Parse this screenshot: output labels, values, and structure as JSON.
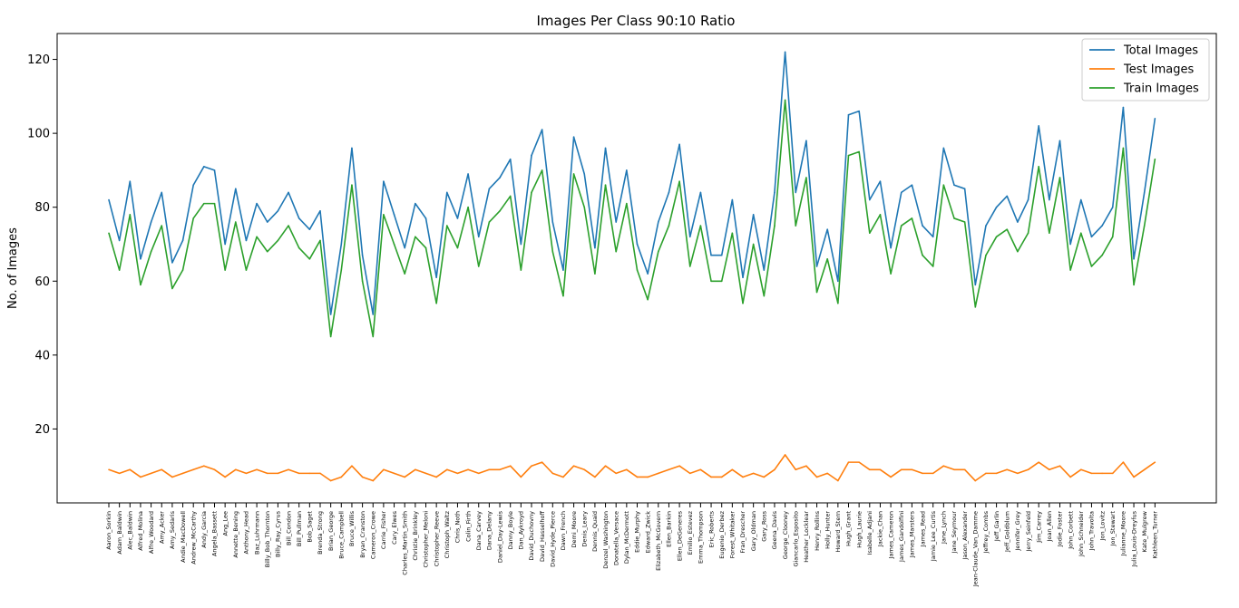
{
  "chart_data": {
    "type": "line",
    "title": "Images Per Class 90:10 Ratio",
    "xlabel": "",
    "ylabel": "No. of Images",
    "ylim": [
      0,
      127
    ],
    "yticks": [
      20,
      40,
      60,
      80,
      100,
      120
    ],
    "grid": false,
    "legend_position": "top-right",
    "categories": [
      "Aaron_Sorkin",
      "Adam_Baldwin",
      "Alec_Baldwin",
      "Alfred_Molina",
      "Alfre_Woodard",
      "Amy_Acker",
      "Amy_Sedaris",
      "Andie_MacDowell",
      "Andrew_McCarthy",
      "Andy_Garcia",
      "Angela_Bassett",
      "Ang_Lee",
      "Annette_Bening",
      "Anthony_Head",
      "Baz_Luhrmann",
      "Billy_Bob_Thornton",
      "Billy_Ray_Cyrus",
      "Bill_Condon",
      "Bill_Pullman",
      "Bob_Saget",
      "Brenda_Strong",
      "Brian_George",
      "Bruce_Campbell",
      "Bruce_Willis",
      "Bryan_Cranston",
      "Cameron_Crowe",
      "Carrie_Fisher",
      "Cary_Elwes",
      "Charles_Martin_Smith",
      "Christie_Brinkley",
      "Christopher_Meloni",
      "Christopher_Reeve",
      "Christoph_Waltz",
      "Chris_Noth",
      "Colin_Firth",
      "Dana_Carvey",
      "Dana_Delany",
      "Daniel_Day-Lewis",
      "Danny_Boyle",
      "Dan_Aykroyd",
      "David_Duchovny",
      "David_Hasselhoff",
      "David_Hyde_Pierce",
      "Dawn_French",
      "Demi_Moore",
      "Denis_Leary",
      "Dennis_Quaid",
      "Denzel_Washington",
      "Donatella_Versace",
      "Dylan_McDermott",
      "Eddie_Murphy",
      "Edward_Zwick",
      "Elizabeth_McGovern",
      "Ellen_Barkin",
      "Ellen_DeGeneres",
      "Emilio_Estevez",
      "Emma_Thompson",
      "Eric_Roberts",
      "Eugenio_Derbez",
      "Forest_Whitaker",
      "Fran_Drescher",
      "Gary_Oldman",
      "Gary_Ross",
      "Geena_Davis",
      "George_Clooney",
      "Giancarlo_Esposito",
      "Heather_Locklear",
      "Henry_Rollins",
      "Holly_Hunter",
      "Howard_Stern",
      "Hugh_Grant",
      "Hugh_Laurie",
      "Isabelle_Adjani",
      "Jackie_Chan",
      "James_Cameron",
      "James_Gandolfini",
      "James_Marsters",
      "James_Read",
      "Jamie_Lee_Curtis",
      "Jane_Lynch",
      "Jane_Seymour",
      "Jason_Alexander",
      "Jean-Claude_Van_Damme",
      "Jeffrey_Combs",
      "Jeff_Garlin",
      "Jeff_Goldblum",
      "Jennifer_Grey",
      "Jerry_Seinfeld",
      "Jim_Carrey",
      "Joan_Allen",
      "Jodie_Foster",
      "John_Corbett",
      "John_Schneider",
      "John_Travolta",
      "Jon_Lovitz",
      "Jon_Stewart",
      "Julianne_Moore",
      "Julia_Louis-Dreyfus",
      "Kate_Mulgrew",
      "Kathleen_Turner"
    ],
    "series": [
      {
        "name": "Total Images",
        "color": "#1f77b4",
        "values": [
          82,
          71,
          87,
          66,
          76,
          84,
          65,
          71,
          86,
          91,
          90,
          70,
          85,
          71,
          81,
          76,
          79,
          84,
          77,
          74,
          79,
          51,
          70,
          96,
          67,
          51,
          87,
          78,
          69,
          81,
          77,
          61,
          84,
          77,
          89,
          72,
          85,
          88,
          93,
          70,
          94,
          101,
          76,
          63,
          99,
          89,
          69,
          96,
          76,
          90,
          70,
          62,
          76,
          84,
          97,
          72,
          84,
          67,
          67,
          82,
          61,
          78,
          63,
          84,
          122,
          84,
          98,
          64,
          74,
          60,
          105,
          106,
          82,
          87,
          69,
          84,
          86,
          75,
          72,
          96,
          86,
          85,
          59,
          75,
          80,
          83,
          76,
          82,
          102,
          82,
          98,
          70,
          82,
          72,
          75,
          80,
          107,
          66,
          84,
          104
        ]
      },
      {
        "name": "Test Images",
        "color": "#ff7f0e",
        "values": [
          9,
          8,
          9,
          7,
          8,
          9,
          7,
          8,
          9,
          10,
          9,
          7,
          9,
          8,
          9,
          8,
          8,
          9,
          8,
          8,
          8,
          6,
          7,
          10,
          7,
          6,
          9,
          8,
          7,
          9,
          8,
          7,
          9,
          8,
          9,
          8,
          9,
          9,
          10,
          7,
          10,
          11,
          8,
          7,
          10,
          9,
          7,
          10,
          8,
          9,
          7,
          7,
          8,
          9,
          10,
          8,
          9,
          7,
          7,
          9,
          7,
          8,
          7,
          9,
          13,
          9,
          10,
          7,
          8,
          6,
          11,
          11,
          9,
          9,
          7,
          9,
          9,
          8,
          8,
          10,
          9,
          9,
          6,
          8,
          8,
          9,
          8,
          9,
          11,
          9,
          10,
          7,
          9,
          8,
          8,
          8,
          11,
          7,
          9,
          11
        ]
      },
      {
        "name": "Train Images",
        "color": "#2ca02c",
        "values": [
          73,
          63,
          78,
          59,
          68,
          75,
          58,
          63,
          77,
          81,
          81,
          63,
          76,
          63,
          72,
          68,
          71,
          75,
          69,
          66,
          71,
          45,
          63,
          86,
          60,
          45,
          78,
          70,
          62,
          72,
          69,
          54,
          75,
          69,
          80,
          64,
          76,
          79,
          83,
          63,
          84,
          90,
          68,
          56,
          89,
          80,
          62,
          86,
          68,
          81,
          63,
          55,
          68,
          75,
          87,
          64,
          75,
          60,
          60,
          73,
          54,
          70,
          56,
          75,
          109,
          75,
          88,
          57,
          66,
          54,
          94,
          95,
          73,
          78,
          62,
          75,
          77,
          67,
          64,
          86,
          77,
          76,
          53,
          67,
          72,
          74,
          68,
          73,
          91,
          73,
          88,
          63,
          73,
          64,
          67,
          72,
          96,
          59,
          75,
          93
        ]
      }
    ]
  }
}
